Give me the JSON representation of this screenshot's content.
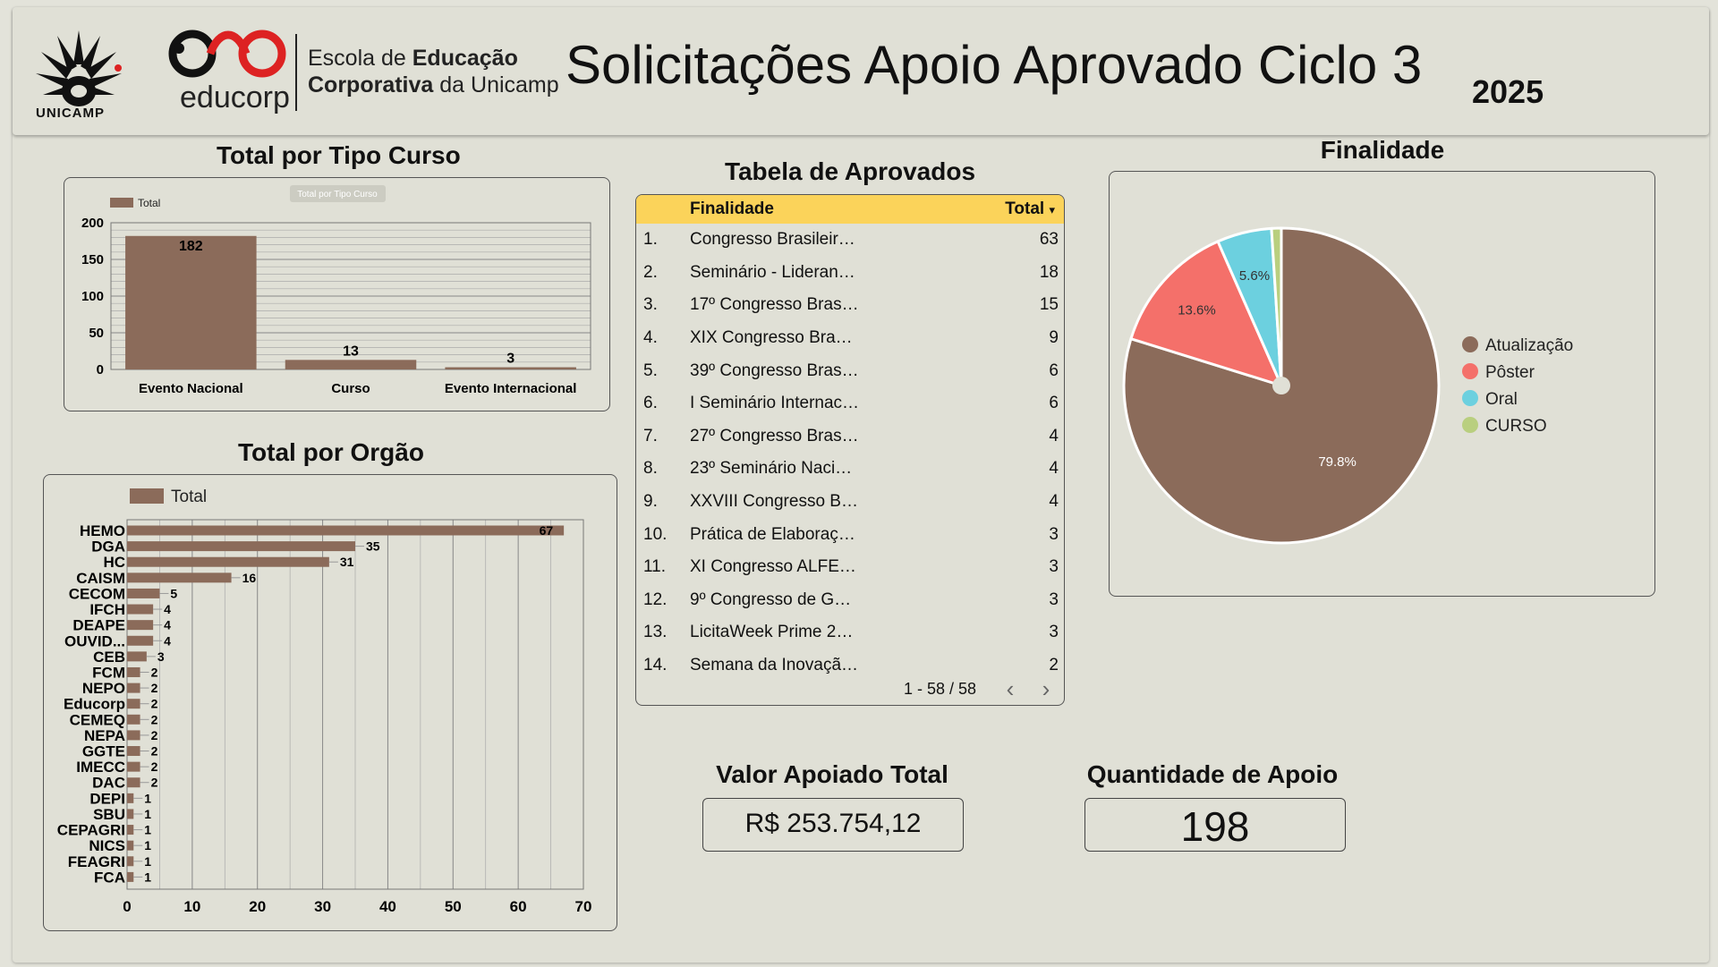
{
  "header": {
    "title": "Solicitações Apoio Aprovado Ciclo 3",
    "year": "2025",
    "unicamp_label": "UNICAMP",
    "educorp_label": "educorp",
    "educorp_line1_a": "Escola de ",
    "educorp_line1_b": "Educação",
    "educorp_line2_a": "Corporativa",
    "educorp_line2_b": " da Unicamp"
  },
  "colors": {
    "brown": "#8b6b5a",
    "salmon": "#f4706a",
    "cyan": "#6cd0df",
    "olive": "#b9cf7f",
    "table_header": "#fbd35a"
  },
  "tipo_curso": {
    "title": "Total por Tipo Curso",
    "subtitle_badge": "Total por Tipo Curso",
    "legend": "Total"
  },
  "orgao": {
    "title": "Total por Orgão",
    "legend": "Total"
  },
  "table": {
    "title": "Tabela de Aprovados",
    "col_name": "Finalidade",
    "col_total": "Total",
    "sort_icon": "▾",
    "rows": [
      {
        "num": "1.",
        "name": "Congresso Brasileir…",
        "total": "63"
      },
      {
        "num": "2.",
        "name": "Seminário - Lideran…",
        "total": "18"
      },
      {
        "num": "3.",
        "name": "17º Congresso Bras…",
        "total": "15"
      },
      {
        "num": "4.",
        "name": "XIX Congresso Bra…",
        "total": "9"
      },
      {
        "num": "5.",
        "name": "39º Congresso Bras…",
        "total": "6"
      },
      {
        "num": "6.",
        "name": "I Seminário Internac…",
        "total": "6"
      },
      {
        "num": "7.",
        "name": "27º Congresso Bras…",
        "total": "4"
      },
      {
        "num": "8.",
        "name": "23º Seminário Naci…",
        "total": "4"
      },
      {
        "num": "9.",
        "name": "XXVIII Congresso B…",
        "total": "4"
      },
      {
        "num": "10.",
        "name": "Prática de Elaboraç…",
        "total": "3"
      },
      {
        "num": "11.",
        "name": "XI Congresso ALFE…",
        "total": "3"
      },
      {
        "num": "12.",
        "name": "9º Congresso de G…",
        "total": "3"
      },
      {
        "num": "13.",
        "name": "LicitaWeek Prime 2…",
        "total": "3"
      },
      {
        "num": "14.",
        "name": "Semana da Inovaçã…",
        "total": "2"
      }
    ],
    "pagination": "1 - 58 / 58",
    "prev": "‹",
    "next": "›"
  },
  "finalidade": {
    "title": "Finalidade"
  },
  "kpi": {
    "valor_title": "Valor Apoiado Total",
    "valor": "R$ 253.754,12",
    "qtd_title": "Quantidade de Apoio",
    "qtd": "198"
  },
  "chart_data": [
    {
      "type": "bar",
      "title": "Total por Tipo Curso",
      "categories": [
        "Evento Nacional",
        "Curso",
        "Evento Internacional"
      ],
      "series": [
        {
          "name": "Total",
          "values": [
            182,
            13,
            3
          ]
        }
      ],
      "ylim": [
        0,
        200
      ],
      "yticks": [
        0,
        50,
        100,
        150,
        200
      ],
      "legend": "top-left",
      "grid": true
    },
    {
      "type": "bar",
      "orientation": "horizontal",
      "title": "Total por Orgão",
      "categories": [
        "HEMO",
        "DGA",
        "HC",
        "CAISM",
        "CECOM",
        "IFCH",
        "DEAPE",
        "OUVID...",
        "CEB",
        "FCM",
        "NEPO",
        "Educorp",
        "CEMEQ",
        "NEPA",
        "GGTE",
        "IMECC",
        "DAC",
        "DEPI",
        "SBU",
        "CEPAGRI",
        "NICS",
        "FEAGRI",
        "FCA"
      ],
      "series": [
        {
          "name": "Total",
          "values": [
            67,
            35,
            31,
            16,
            5,
            4,
            4,
            4,
            3,
            2,
            2,
            2,
            2,
            2,
            2,
            2,
            2,
            1,
            1,
            1,
            1,
            1,
            1
          ]
        }
      ],
      "xlim": [
        0,
        70
      ],
      "xticks": [
        0,
        10,
        20,
        30,
        40,
        50,
        60,
        70
      ],
      "legend": "top-left",
      "grid": true
    },
    {
      "type": "pie",
      "title": "Finalidade",
      "labels": [
        "Atualização",
        "Pôster",
        "Oral",
        "CURSO"
      ],
      "values": [
        79.8,
        13.6,
        5.6,
        1.0
      ],
      "value_labels": [
        "79.8%",
        "13.6%",
        "5.6%",
        ""
      ],
      "legend": "right"
    }
  ]
}
